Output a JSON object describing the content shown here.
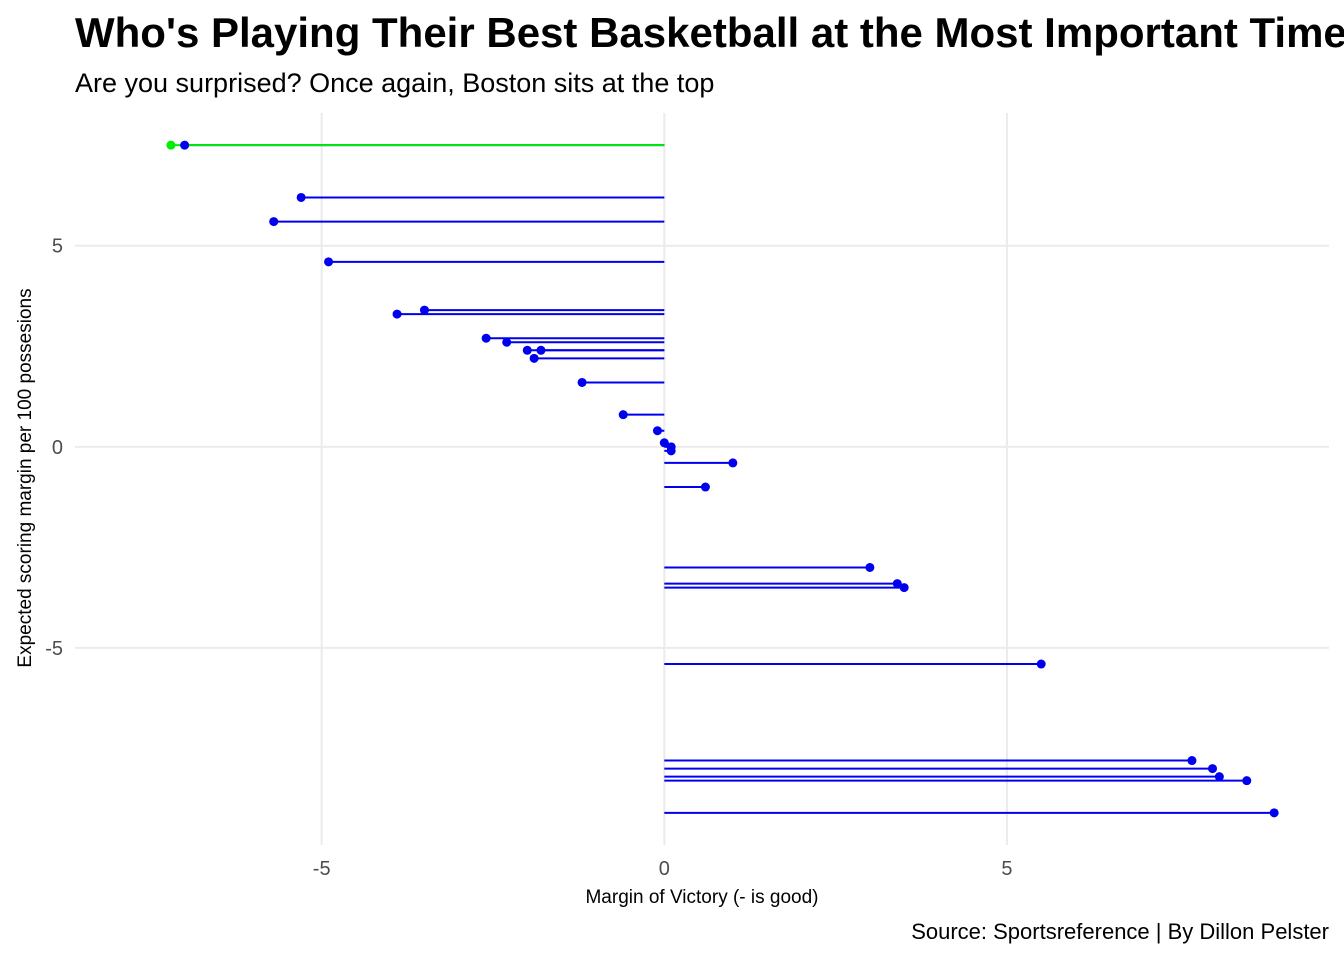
{
  "chart_data": {
    "type": "lollipop",
    "title": "Who's Playing Their Best Basketball at the Most Important Time?",
    "subtitle": "Are you surprised? Once again, Boston sits at the top",
    "caption": "Source: Sportsreference | By Dillon Pelster",
    "xlabel": "Margin of Victory (- is good)",
    "ylabel": "Expected scoring margin per 100 possesions",
    "xlim": [
      -8.6,
      9.7
    ],
    "ylim": [
      -9.9,
      8.3
    ],
    "x_ticks": [
      -5,
      0,
      5
    ],
    "x_tick_labels": [
      "-5",
      "0",
      "5"
    ],
    "y_ticks": [
      -5,
      0,
      5
    ],
    "y_tick_labels": [
      "-5",
      "0",
      "5"
    ],
    "grid": true,
    "baseline_x": 0,
    "colors": {
      "default": "#0000ee",
      "highlight": "#00ee00",
      "grid": "#ebebeb"
    },
    "points": [
      {
        "x": -7.2,
        "y": 7.5,
        "highlight": true
      },
      {
        "x": -7.0,
        "y": 7.5,
        "highlight": false
      },
      {
        "x": -5.3,
        "y": 6.2,
        "highlight": false
      },
      {
        "x": -5.7,
        "y": 5.6,
        "highlight": false
      },
      {
        "x": -4.9,
        "y": 4.6,
        "highlight": false
      },
      {
        "x": -3.5,
        "y": 3.4,
        "highlight": false
      },
      {
        "x": -3.9,
        "y": 3.3,
        "highlight": false
      },
      {
        "x": -2.6,
        "y": 2.7,
        "highlight": false
      },
      {
        "x": -2.3,
        "y": 2.6,
        "highlight": false
      },
      {
        "x": -1.8,
        "y": 2.4,
        "highlight": false
      },
      {
        "x": -2.0,
        "y": 2.4,
        "highlight": false
      },
      {
        "x": -1.9,
        "y": 2.2,
        "highlight": false
      },
      {
        "x": -1.2,
        "y": 1.6,
        "highlight": false
      },
      {
        "x": -0.6,
        "y": 0.8,
        "highlight": false
      },
      {
        "x": -0.1,
        "y": 0.4,
        "highlight": false
      },
      {
        "x": 0.0,
        "y": 0.1,
        "highlight": false
      },
      {
        "x": 0.1,
        "y": 0.0,
        "highlight": false
      },
      {
        "x": 0.1,
        "y": -0.1,
        "highlight": false
      },
      {
        "x": 1.0,
        "y": -0.4,
        "highlight": false
      },
      {
        "x": 0.6,
        "y": -1.0,
        "highlight": false
      },
      {
        "x": 3.0,
        "y": -3.0,
        "highlight": false
      },
      {
        "x": 3.4,
        "y": -3.4,
        "highlight": false
      },
      {
        "x": 3.5,
        "y": -3.5,
        "highlight": false
      },
      {
        "x": 5.5,
        "y": -5.4,
        "highlight": false
      },
      {
        "x": 7.7,
        "y": -7.8,
        "highlight": false
      },
      {
        "x": 8.0,
        "y": -8.0,
        "highlight": false
      },
      {
        "x": 8.1,
        "y": -8.2,
        "highlight": false
      },
      {
        "x": 8.5,
        "y": -8.3,
        "highlight": false
      },
      {
        "x": 8.9,
        "y": -9.1,
        "highlight": false
      }
    ]
  }
}
